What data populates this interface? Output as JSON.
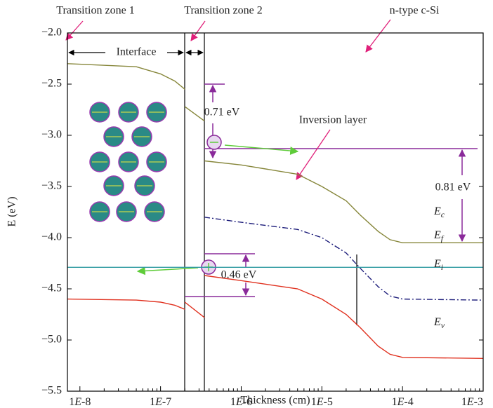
{
  "chart_data": {
    "type": "line",
    "xlabel": "Thickness (cm)",
    "ylabel": "E (eV)",
    "xscale": "log",
    "xlim": [
      7e-09,
      0.001
    ],
    "xticks": [
      {
        "value": 1e-08,
        "label": "1E-8"
      },
      {
        "value": 1e-07,
        "label": "1E-7"
      },
      {
        "value": 1e-06,
        "label": "1E-6"
      },
      {
        "value": 1e-05,
        "label": "1E-5"
      },
      {
        "value": 0.0001,
        "label": "1E-4"
      },
      {
        "value": 0.001,
        "label": "1E-3"
      }
    ],
    "ylim": [
      -5.5,
      -2.0
    ],
    "yticks": [
      {
        "value": -2.0,
        "label": "−2.0"
      },
      {
        "value": -2.5,
        "label": "−2.5"
      },
      {
        "value": -3.0,
        "label": "−3.0"
      },
      {
        "value": -3.5,
        "label": "−3.5"
      },
      {
        "value": -4.0,
        "label": "−4.0"
      },
      {
        "value": -4.5,
        "label": "−4.5"
      },
      {
        "value": -5.0,
        "label": "−5.0"
      },
      {
        "value": -5.5,
        "label": "−5.5"
      }
    ],
    "grid": false,
    "series": [
      {
        "name": "Ec",
        "color": "#86863a",
        "dash": "none",
        "x": [
          7e-09,
          5e-08,
          1e-07,
          1.5e-07,
          2e-07,
          null,
          2e-07,
          3.5e-07,
          null,
          3.5e-07,
          1e-06,
          5e-06,
          1e-05,
          2e-05,
          3e-05,
          5e-05,
          7e-05,
          0.0001,
          0.001
        ],
        "values": [
          -2.3,
          -2.33,
          -2.4,
          -2.47,
          -2.55,
          null,
          -2.72,
          -2.86,
          null,
          -3.25,
          -3.29,
          -3.38,
          -3.5,
          -3.64,
          -3.78,
          -3.94,
          -4.02,
          -4.05,
          -4.05
        ]
      },
      {
        "name": "Ef",
        "color": "#2e9aa0",
        "dash": "none",
        "x": [
          7e-09,
          0.001
        ],
        "values": [
          -4.29,
          -4.29
        ]
      },
      {
        "name": "Ei",
        "color": "#1c1c7a",
        "dash": "8,3,2,3",
        "x": [
          3.5e-07,
          1e-06,
          5e-06,
          1e-05,
          2e-05,
          3e-05,
          5e-05,
          7e-05,
          0.0001,
          0.001
        ],
        "values": [
          -3.8,
          -3.85,
          -3.92,
          -4.0,
          -4.15,
          -4.3,
          -4.48,
          -4.57,
          -4.6,
          -4.61
        ]
      },
      {
        "name": "Ev",
        "color": "#e0301e",
        "dash": "none",
        "x": [
          7e-09,
          5e-08,
          1e-07,
          1.5e-07,
          2e-07,
          null,
          2e-07,
          3.5e-07,
          null,
          3.5e-07,
          1e-06,
          5e-06,
          1e-05,
          2e-05,
          3e-05,
          5e-05,
          7e-05,
          0.0001,
          0.001
        ],
        "values": [
          -4.6,
          -4.61,
          -4.63,
          -4.66,
          -4.7,
          null,
          -4.63,
          -4.78,
          null,
          -4.37,
          -4.42,
          -4.5,
          -4.6,
          -4.75,
          -4.88,
          -5.06,
          -5.14,
          -5.17,
          -5.18
        ]
      }
    ],
    "annotations": {
      "zone1": "Transition zone 1",
      "zone2": "Transition zone 2",
      "bulk": "n-type c-Si",
      "interface": "Interface",
      "gap_c": "0.71 eV",
      "inversion": "Inversion layer",
      "gap_f": "0.81 eV",
      "gap_v": "0.46 eV"
    }
  }
}
